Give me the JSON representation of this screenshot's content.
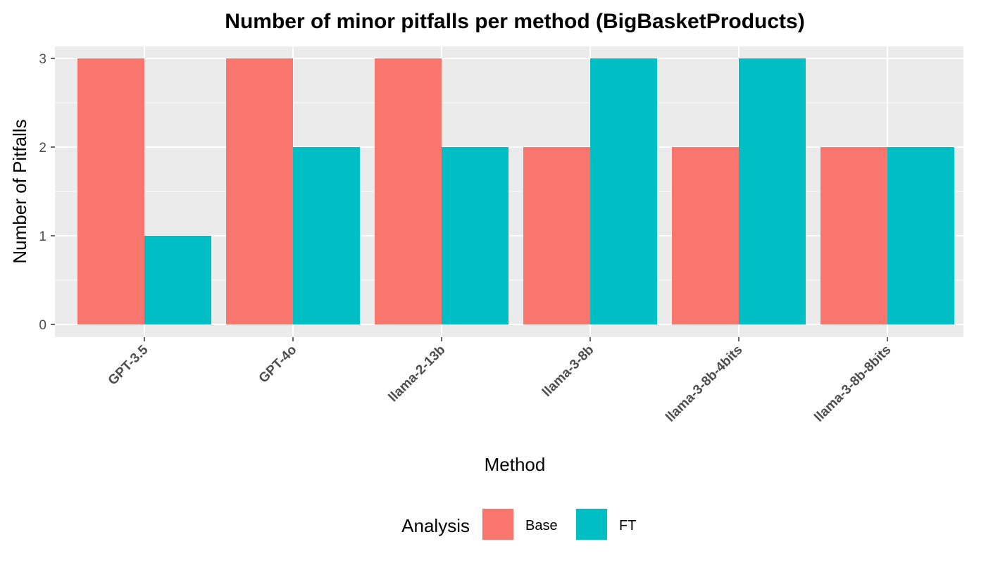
{
  "chart_data": {
    "type": "bar",
    "title": "Number of minor pitfalls per method (BigBasketProducts)",
    "xlabel": "Method",
    "ylabel": "Number of Pitfalls",
    "categories": [
      "GPT-3.5",
      "GPT-4o",
      "llama-2-13b",
      "llama-3-8b",
      "llama-3-8b-4bits",
      "llama-3-8b-8bits"
    ],
    "series": [
      {
        "name": "Base",
        "values": [
          3,
          3,
          3,
          2,
          2,
          2
        ],
        "color": "#F8766D"
      },
      {
        "name": "FT",
        "values": [
          1,
          2,
          2,
          3,
          3,
          2
        ],
        "color": "#00BFC4"
      }
    ],
    "ylim": [
      0,
      3
    ],
    "yticks": [
      0,
      1,
      2,
      3
    ],
    "grid": true,
    "legend": {
      "title": "Analysis",
      "position": "bottom"
    },
    "panel_color": "#EBEBEB"
  }
}
